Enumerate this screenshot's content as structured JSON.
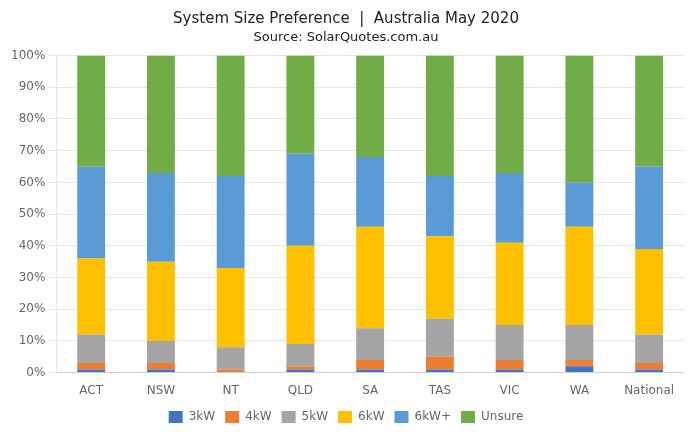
{
  "chart_data": {
    "type": "bar",
    "stacked": true,
    "title": "System Size Preference  |  Australia May 2020",
    "subtitle": "Source: SolarQuotes.com.au",
    "categories": [
      "ACT",
      "NSW",
      "NT",
      "QLD",
      "SA",
      "TAS",
      "VIC",
      "WA",
      "National"
    ],
    "series": [
      {
        "name": "3kW",
        "color": "#4472C4",
        "values": [
          1,
          1,
          0,
          1,
          1,
          1,
          1,
          2,
          1
        ]
      },
      {
        "name": "4kW",
        "color": "#ED7D31",
        "values": [
          2,
          2,
          1,
          1,
          3,
          4,
          3,
          2,
          2
        ]
      },
      {
        "name": "5kW",
        "color": "#A5A5A5",
        "values": [
          9,
          7,
          7,
          7,
          10,
          12,
          11,
          11,
          9
        ]
      },
      {
        "name": "6kW",
        "color": "#FFC000",
        "values": [
          24,
          25,
          25,
          31,
          32,
          26,
          26,
          31,
          27
        ]
      },
      {
        "name": "6kW+",
        "color": "#5B9BD5",
        "values": [
          29,
          28,
          29,
          29,
          22,
          19,
          22,
          14,
          26
        ]
      },
      {
        "name": "Unsure",
        "color": "#70AD47",
        "values": [
          35,
          37,
          38,
          31,
          32,
          38,
          37,
          40,
          35
        ]
      }
    ],
    "ylim": [
      0,
      100
    ],
    "yticks": [
      {
        "value": 0,
        "label": "0%"
      },
      {
        "value": 10,
        "label": "10%"
      },
      {
        "value": 20,
        "label": "20%"
      },
      {
        "value": 30,
        "label": "30%"
      },
      {
        "value": 40,
        "label": "40%"
      },
      {
        "value": 50,
        "label": "50%"
      },
      {
        "value": 60,
        "label": "60%"
      },
      {
        "value": 70,
        "label": "70%"
      },
      {
        "value": 80,
        "label": "80%"
      },
      {
        "value": 90,
        "label": "90%"
      },
      {
        "value": 100,
        "label": "100%"
      }
    ],
    "grid": true,
    "legend": "bottom"
  }
}
